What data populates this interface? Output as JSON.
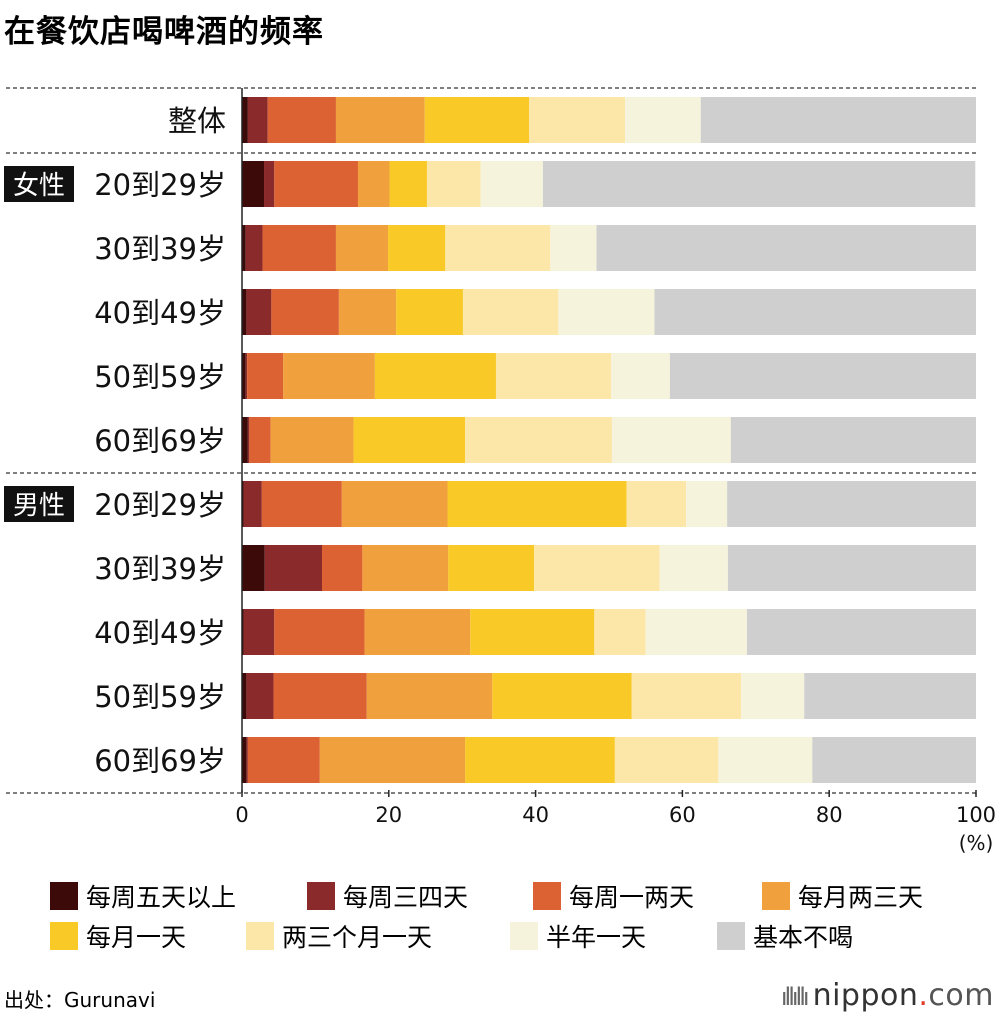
{
  "title": "在餐饮店喝啤酒的频率",
  "source": "出处：Gurunavi",
  "logo": {
    "icon": "bars-icon",
    "name": "nippon",
    "dot": ".",
    "tld": "com"
  },
  "colors": [
    "#3d0a0a",
    "#8b2a2a",
    "#dd6233",
    "#f0a03c",
    "#f9c928",
    "#fde7a8",
    "#f6f3dc",
    "#cfcfcf"
  ],
  "chart_data": {
    "type": "bar",
    "orientation": "horizontal",
    "stacked": true,
    "title": "在餐饮店喝啤酒的频率",
    "xlim": [
      0,
      100
    ],
    "xticks": [
      0,
      20,
      40,
      60,
      80,
      100
    ],
    "xunit": "(%)",
    "groups": [
      {
        "name": "",
        "rows": [
          0
        ]
      },
      {
        "name": "女性",
        "rows": [
          1,
          2,
          3,
          4,
          5
        ]
      },
      {
        "name": "男性",
        "rows": [
          6,
          7,
          8,
          9,
          10
        ]
      }
    ],
    "categories": [
      "整体",
      "20到29岁",
      "30到39岁",
      "40到49岁",
      "50到59岁",
      "60到69岁",
      "20到29岁",
      "30到39岁",
      "40到49岁",
      "50到59岁",
      "60到69岁"
    ],
    "series": [
      {
        "name": "每周五天以上",
        "values": [
          0.8,
          3.0,
          0.5,
          0.6,
          0.5,
          0.8,
          0.2,
          3.1,
          0.2,
          0.6,
          0.6
        ]
      },
      {
        "name": "每周三四天",
        "values": [
          2.7,
          1.4,
          2.3,
          3.4,
          0.2,
          0.2,
          2.5,
          7.8,
          4.2,
          3.7,
          0.2
        ]
      },
      {
        "name": "每周一两天",
        "values": [
          9.3,
          11.4,
          10.0,
          9.2,
          4.9,
          2.9,
          10.9,
          5.5,
          12.3,
          12.7,
          9.8
        ]
      },
      {
        "name": "每月两三天",
        "values": [
          12.1,
          4.3,
          7.1,
          7.8,
          12.5,
          11.3,
          14.4,
          11.7,
          14.4,
          17.1,
          19.8
        ]
      },
      {
        "name": "每月一天",
        "values": [
          14.2,
          5.1,
          7.8,
          9.1,
          16.5,
          15.2,
          24.4,
          11.7,
          16.9,
          19.0,
          20.4
        ]
      },
      {
        "name": "两三个月一天",
        "values": [
          13.1,
          7.3,
          14.3,
          13.0,
          15.7,
          20.0,
          8.1,
          17.1,
          7.0,
          14.9,
          14.1
        ]
      },
      {
        "name": "半年一天",
        "values": [
          10.3,
          8.5,
          6.3,
          13.1,
          8.0,
          16.2,
          5.6,
          9.3,
          13.8,
          8.6,
          12.8
        ]
      },
      {
        "name": "基本不喝",
        "values": [
          37.5,
          58.9,
          51.7,
          43.8,
          41.7,
          33.4,
          33.9,
          33.8,
          31.2,
          23.4,
          22.3
        ]
      }
    ]
  }
}
